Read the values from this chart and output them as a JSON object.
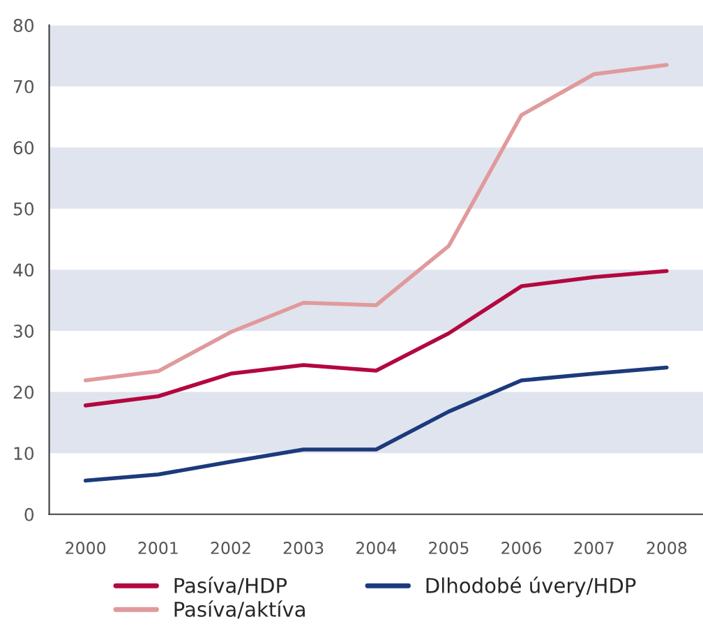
{
  "chart_data": {
    "type": "line",
    "categories": [
      "2000",
      "2001",
      "2002",
      "2003",
      "2004",
      "2005",
      "2006",
      "2007",
      "2008"
    ],
    "series": [
      {
        "name": "Pasíva/HDP",
        "color": "#b3083f",
        "values": [
          17.8,
          19.3,
          23,
          24.4,
          23.5,
          29.6,
          37.3,
          38.8,
          39.8
        ]
      },
      {
        "name": "Pasíva/aktíva",
        "color": "#e09a9c",
        "values": [
          21.9,
          23.4,
          29.8,
          34.6,
          34.2,
          43.9,
          65.3,
          72,
          73.5
        ]
      },
      {
        "name": "Dlhodobé úvery/HDP",
        "color": "#1c3a7c",
        "values": [
          5.5,
          6.5,
          8.6,
          10.6,
          10.6,
          16.8,
          21.9,
          23,
          24
        ]
      }
    ],
    "ylim": [
      0,
      80
    ],
    "yticks": [
      0,
      10,
      20,
      30,
      40,
      50,
      60,
      70,
      80
    ],
    "bands": [
      {
        "axis": "y",
        "from": 10,
        "to": 20,
        "color": "#dfe4ee"
      },
      {
        "axis": "y",
        "from": 30,
        "to": 40,
        "color": "#dfe4ee"
      },
      {
        "axis": "y",
        "from": 50,
        "to": 60,
        "color": "#dfe4ee"
      },
      {
        "axis": "y",
        "from": 70,
        "to": 80,
        "color": "#dfe4ee"
      }
    ],
    "grid": false,
    "legend": "bottom",
    "marker": "none",
    "line_style": "solid"
  }
}
